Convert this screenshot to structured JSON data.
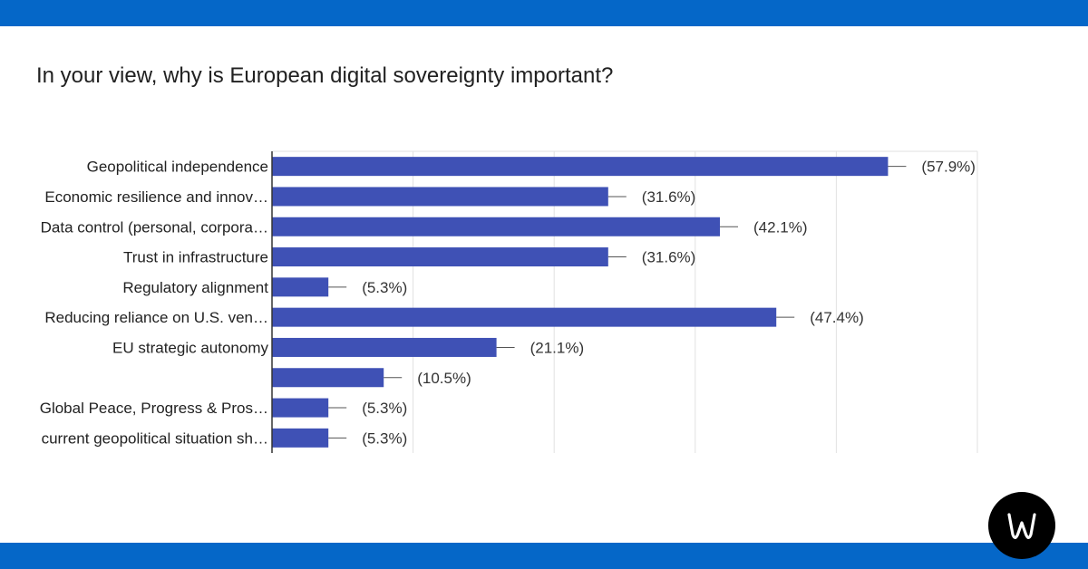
{
  "colors": {
    "band": "#0567c8",
    "bar": "#3f51b5",
    "grid": "#e2e2e2",
    "axis": "#333333"
  },
  "question": "In your view, why is European digital sovereignty important?",
  "logo": {
    "name": "wordpress-style-w-logo"
  },
  "chart_data": {
    "type": "bar",
    "orientation": "horizontal",
    "categories": [
      "Geopolitical independence",
      "Economic resilience and innov…",
      "Data control (personal, corpora…",
      "Trust in infrastructure",
      "Regulatory alignment",
      "Reducing reliance on U.S. ven…",
      "EU strategic autonomy",
      "",
      "Global Peace, Progress & Pros…",
      "current geopolitical situation sh…"
    ],
    "values": [
      57.9,
      31.6,
      42.1,
      31.6,
      5.3,
      47.4,
      21.1,
      10.5,
      5.3,
      5.3
    ],
    "value_labels": [
      "(57.9%)",
      "(31.6%)",
      "(42.1%)",
      "(31.6%)",
      "(5.3%)",
      "(47.4%)",
      "(21.1%)",
      "(10.5%)",
      "(5.3%)",
      "(5.3%)"
    ],
    "xlim": [
      0,
      66.3
    ],
    "grid": true,
    "title": "In your view, why is European digital sovereignty important?"
  }
}
